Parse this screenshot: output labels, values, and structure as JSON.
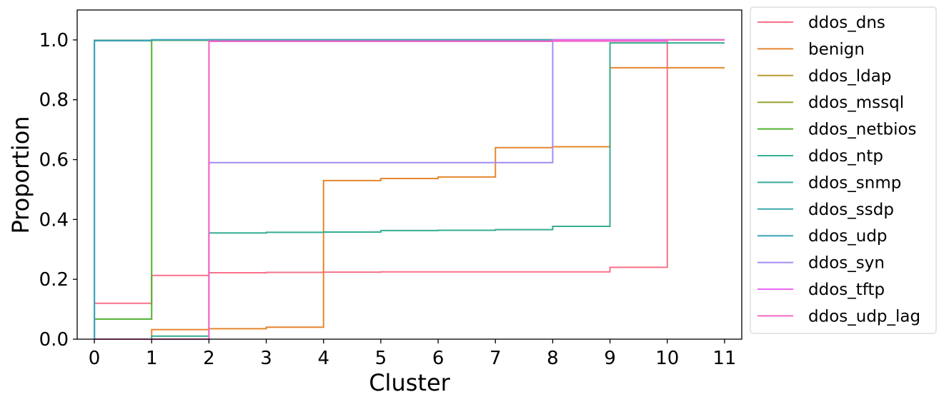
{
  "chart_data": {
    "type": "line",
    "step": "post",
    "xlabel": "Cluster",
    "ylabel": "Proportion",
    "xlim": [
      -0.3,
      11.3
    ],
    "ylim": [
      0.0,
      1.1
    ],
    "xticks": [
      0,
      1,
      2,
      3,
      4,
      5,
      6,
      7,
      8,
      9,
      10,
      11
    ],
    "yticks": [
      0.0,
      0.2,
      0.4,
      0.6,
      0.8,
      1.0
    ],
    "ytick_labels": [
      "0.0",
      "0.2",
      "0.4",
      "0.6",
      "0.8",
      "1.0"
    ],
    "grid": false,
    "legend_position": "outside-right",
    "x": [
      0,
      1,
      2,
      3,
      4,
      5,
      6,
      7,
      8,
      9,
      10,
      11
    ],
    "series": [
      {
        "name": "ddos_dns",
        "color": "#f77189",
        "values": [
          0.12,
          0.213,
          0.222,
          0.223,
          0.224,
          0.225,
          0.225,
          0.225,
          0.225,
          0.24,
          1.0,
          1.0
        ]
      },
      {
        "name": "benign",
        "color": "#e5862f",
        "values": [
          0.0,
          0.032,
          0.035,
          0.04,
          0.53,
          0.537,
          0.542,
          0.64,
          0.643,
          0.907,
          0.907,
          0.907
        ]
      },
      {
        "name": "ddos_ldap",
        "color": "#bb9832",
        "values": [
          0.999,
          0.999,
          1.0,
          1.0,
          1.0,
          1.0,
          1.0,
          1.0,
          1.0,
          1.0,
          1.0,
          1.0
        ]
      },
      {
        "name": "ddos_mssql",
        "color": "#97a431",
        "values": [
          0.997,
          1.0,
          1.0,
          1.0,
          1.0,
          1.0,
          1.0,
          1.0,
          1.0,
          1.0,
          1.0,
          1.0
        ]
      },
      {
        "name": "ddos_netbios",
        "color": "#50b131",
        "values": [
          0.067,
          0.999,
          1.0,
          1.0,
          1.0,
          1.0,
          1.0,
          1.0,
          1.0,
          1.0,
          1.0,
          1.0
        ]
      },
      {
        "name": "ddos_ntp",
        "color": "#34ae91",
        "values": [
          0.0,
          0.01,
          0.355,
          0.357,
          0.358,
          0.363,
          0.364,
          0.366,
          0.377,
          0.99,
          0.99,
          0.99
        ]
      },
      {
        "name": "ddos_snmp",
        "color": "#37aa9e",
        "values": [
          0.998,
          1.0,
          1.0,
          1.0,
          1.0,
          1.0,
          1.0,
          1.0,
          1.0,
          1.0,
          1.0,
          1.0
        ]
      },
      {
        "name": "ddos_ssdp",
        "color": "#39a7ac",
        "values": [
          0.998,
          1.0,
          1.0,
          1.0,
          1.0,
          1.0,
          1.0,
          1.0,
          1.0,
          1.0,
          1.0,
          1.0
        ]
      },
      {
        "name": "ddos_udp",
        "color": "#3ba3bc",
        "values": [
          0.998,
          1.0,
          1.0,
          1.0,
          1.0,
          1.0,
          1.0,
          1.0,
          1.0,
          1.0,
          1.0,
          1.0
        ]
      },
      {
        "name": "ddos_syn",
        "color": "#a48cf4",
        "values": [
          0.0,
          0.0,
          0.59,
          0.59,
          0.59,
          0.59,
          0.59,
          0.59,
          1.0,
          1.0,
          1.0,
          1.0
        ]
      },
      {
        "name": "ddos_tftp",
        "color": "#e866f4",
        "values": [
          0.0,
          0.0,
          0.995,
          0.995,
          0.995,
          0.995,
          0.995,
          0.995,
          1.0,
          1.0,
          1.0,
          1.0
        ]
      },
      {
        "name": "ddos_udp_lag",
        "color": "#f668c2",
        "values": [
          0.0,
          0.0,
          0.996,
          0.996,
          0.996,
          0.996,
          0.996,
          0.996,
          0.996,
          0.996,
          1.0,
          1.0
        ]
      }
    ]
  }
}
